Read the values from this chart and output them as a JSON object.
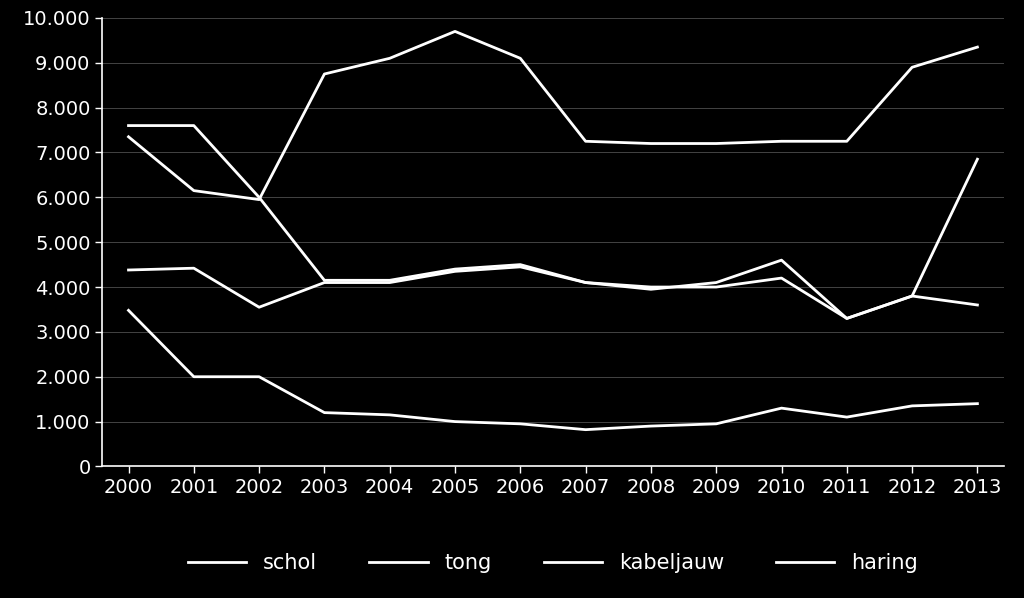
{
  "years": [
    2000,
    2001,
    2002,
    2003,
    2004,
    2005,
    2006,
    2007,
    2008,
    2009,
    2010,
    2011,
    2012,
    2013
  ],
  "schol": [
    7600,
    7600,
    6000,
    4150,
    4150,
    4400,
    4500,
    4100,
    4000,
    4000,
    4200,
    3300,
    3800,
    3600
  ],
  "tong": [
    4380,
    4420,
    3550,
    4100,
    4100,
    4350,
    4450,
    4100,
    3950,
    4100,
    4600,
    3300,
    3800,
    6850
  ],
  "kabeljauw": [
    3480,
    2000,
    2000,
    1200,
    1150,
    1000,
    950,
    820,
    900,
    950,
    1300,
    1100,
    1350,
    1400
  ],
  "haring": [
    7350,
    6150,
    5950,
    8750,
    9100,
    9700,
    9100,
    7250,
    7200,
    7200,
    7250,
    7250,
    8900,
    9350
  ],
  "background_color": "#000000",
  "line_color": "#ffffff",
  "grid_color": "#444444",
  "ylim": [
    0,
    10000
  ],
  "yticks": [
    0,
    1000,
    2000,
    3000,
    4000,
    5000,
    6000,
    7000,
    8000,
    9000,
    10000
  ],
  "ytick_labels": [
    "0",
    "1.000",
    "2.000",
    "3.000",
    "4.000",
    "5.000",
    "6.000",
    "7.000",
    "8.000",
    "9.000",
    "10.000"
  ],
  "legend_labels": [
    "schol",
    "tong",
    "kabeljauw",
    "haring"
  ],
  "tick_fontsize": 14,
  "legend_fontsize": 15,
  "linewidth": 2.0
}
